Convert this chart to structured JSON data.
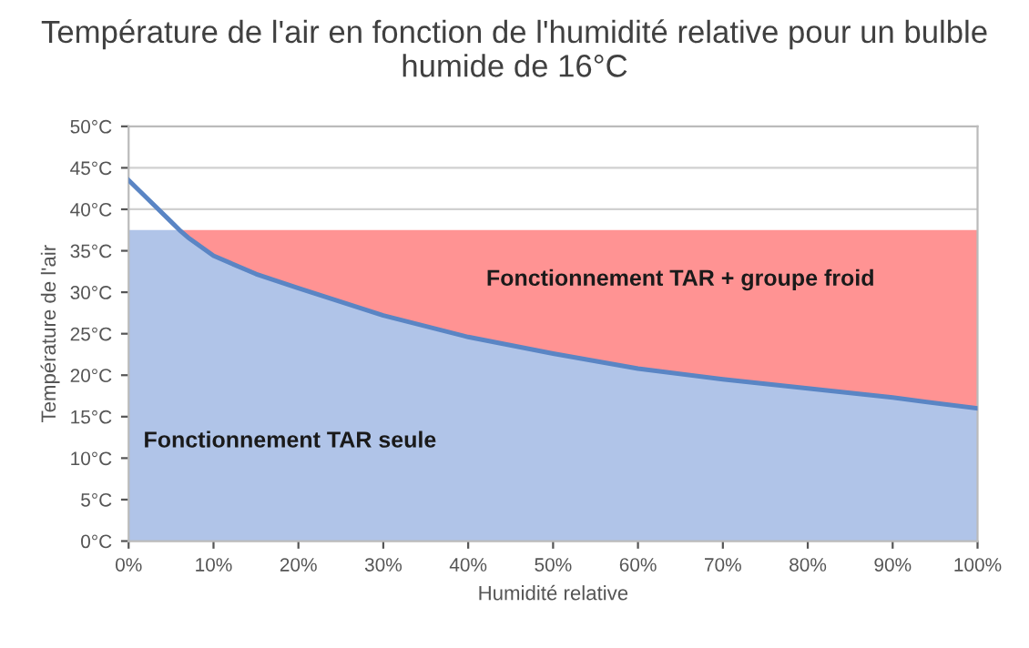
{
  "chart_data": {
    "type": "area",
    "title": "Température de l'air en fonction de l'humidité relative pour un bulble humide de 16°C",
    "xlabel": "Humidité relative",
    "ylabel": "Température de l'air",
    "stacked": true,
    "grid": "y",
    "legend": false,
    "x": [
      0,
      2,
      5,
      6,
      7,
      10,
      15,
      20,
      30,
      40,
      50,
      60,
      70,
      80,
      90,
      100
    ],
    "series": [
      {
        "color": "#b0c4e8",
        "values": [
          37.5,
          37.5,
          37.5,
          37.5,
          36.6,
          34.4,
          32.2,
          30.5,
          27.2,
          24.6,
          22.6,
          20.8,
          19.5,
          18.4,
          17.3,
          16.0
        ]
      },
      {
        "color": "#ff9393",
        "values": [
          0,
          0,
          0,
          0,
          0.9,
          3.1,
          5.3,
          7.0,
          10.3,
          12.9,
          14.9,
          16.7,
          18.0,
          19.1,
          20.2,
          21.5
        ]
      },
      {
        "type": "line",
        "color": "#5a85c4",
        "values": [
          43.5,
          41.5,
          38.5,
          37.5,
          36.6,
          34.4,
          32.2,
          30.5,
          27.2,
          24.6,
          22.6,
          20.8,
          19.5,
          18.4,
          17.3,
          16.0
        ]
      }
    ],
    "xlim": [
      0,
      100
    ],
    "ylim": [
      0,
      50
    ],
    "xticks": [
      {
        "value": 0,
        "label": "0%"
      },
      {
        "value": 10,
        "label": "10%"
      },
      {
        "value": 20,
        "label": "20%"
      },
      {
        "value": 30,
        "label": "30%"
      },
      {
        "value": 40,
        "label": "40%"
      },
      {
        "value": 50,
        "label": "50%"
      },
      {
        "value": 60,
        "label": "60%"
      },
      {
        "value": 70,
        "label": "70%"
      },
      {
        "value": 80,
        "label": "80%"
      },
      {
        "value": 90,
        "label": "90%"
      },
      {
        "value": 100,
        "label": "100%"
      }
    ],
    "yticks": [
      {
        "value": 0,
        "label": "0°C"
      },
      {
        "value": 5,
        "label": "5°C"
      },
      {
        "value": 10,
        "label": "10°C"
      },
      {
        "value": 15,
        "label": "15°C"
      },
      {
        "value": 20,
        "label": "20°C"
      },
      {
        "value": 25,
        "label": "25°C"
      },
      {
        "value": 30,
        "label": "30°C"
      },
      {
        "value": 35,
        "label": "35°C"
      },
      {
        "value": 40,
        "label": "40°C"
      },
      {
        "value": 45,
        "label": "45°C"
      },
      {
        "value": 50,
        "label": "50°C"
      }
    ],
    "annotations": [
      "Fonctionnement TAR + groupe froid",
      "Fonctionnement TAR seule"
    ]
  }
}
